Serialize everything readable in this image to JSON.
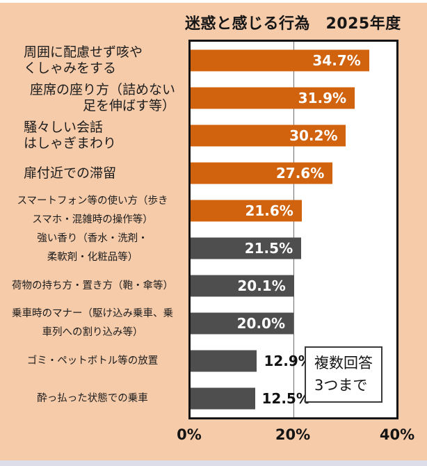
{
  "title": "迷惑と感じる行為　2025年度",
  "colors": {
    "background": "#f6cbaa",
    "bar_highlight": "#d2630e",
    "bar_muted": "#4e4e4e",
    "plot_border": "#141414",
    "bottom_strip": "#dcdde8"
  },
  "note": {
    "line1": "複数回答",
    "line2": "3つまで"
  },
  "chart_data": {
    "type": "bar",
    "orientation": "horizontal",
    "title": "迷惑と感じる行為　2025年度",
    "xlabel": "",
    "xlim": [
      0,
      40
    ],
    "x_ticks": [
      "0%",
      "20%",
      "40%"
    ],
    "grid": "single vertical gridline at 20%",
    "legend": "none",
    "note": "複数回答3つまで",
    "rows": [
      {
        "category": "周囲に配慮せず咳やくしゃみをする",
        "lines": [
          "周囲に配慮せず咳や",
          "くしゃみをする"
        ],
        "value": 34.7,
        "value_label": "34.7%",
        "color": "highlight",
        "value_inside": true
      },
      {
        "category": "座席の座り方（詰めない足を伸ばす等）",
        "lines": [
          "座席の座り方（詰めない",
          "足を伸ばす等）"
        ],
        "value": 31.9,
        "value_label": "31.9%",
        "color": "highlight",
        "value_inside": true
      },
      {
        "category": "騒々しい会話はしゃぎまわり",
        "lines": [
          "騒々しい会話",
          "はしゃぎまわり"
        ],
        "value": 30.2,
        "value_label": "30.2%",
        "color": "highlight",
        "value_inside": true
      },
      {
        "category": "扉付近での滞留",
        "lines": [
          "扉付近での滞留"
        ],
        "value": 27.6,
        "value_label": "27.6%",
        "color": "highlight",
        "value_inside": true
      },
      {
        "category": "スマートフォン等の使い方（歩きスマホ・混雑時の操作等）",
        "lines": [
          "スマートフォン等の使い方（歩き",
          "スマホ・混雑時の操作等）"
        ],
        "value": 21.6,
        "value_label": "21.6%",
        "color": "highlight",
        "value_inside": true
      },
      {
        "category": "強い香り（香水・洗剤・柔軟剤・化粧品等）",
        "lines": [
          "強い香り（香水・洗剤・",
          "柔軟剤・化粧品等）"
        ],
        "value": 21.5,
        "value_label": "21.5%",
        "color": "muted",
        "value_inside": true
      },
      {
        "category": "荷物の持ち方・置き方（鞄・傘等）",
        "lines": [
          "荷物の持ち方・置き方（鞄・傘等）"
        ],
        "value": 20.1,
        "value_label": "20.1%",
        "color": "muted",
        "value_inside": true
      },
      {
        "category": "乗車時のマナー（駆け込み乗車、乗車列への割り込み等）",
        "lines": [
          "乗車時のマナー（駆け込み乗車、乗",
          "車列への割り込み等）"
        ],
        "value": 20.0,
        "value_label": "20.0%",
        "color": "muted",
        "value_inside": true
      },
      {
        "category": "ゴミ・ペットボトル等の放置",
        "lines": [
          "ゴミ・ペットボトル等の放置"
        ],
        "value": 12.9,
        "value_label": "12.9%",
        "color": "muted",
        "value_inside": false
      },
      {
        "category": "酔っ払った状態での乗車",
        "lines": [
          "酔っ払った状態での乗車"
        ],
        "value": 12.5,
        "value_label": "12.5%",
        "color": "muted",
        "value_inside": false
      }
    ]
  }
}
